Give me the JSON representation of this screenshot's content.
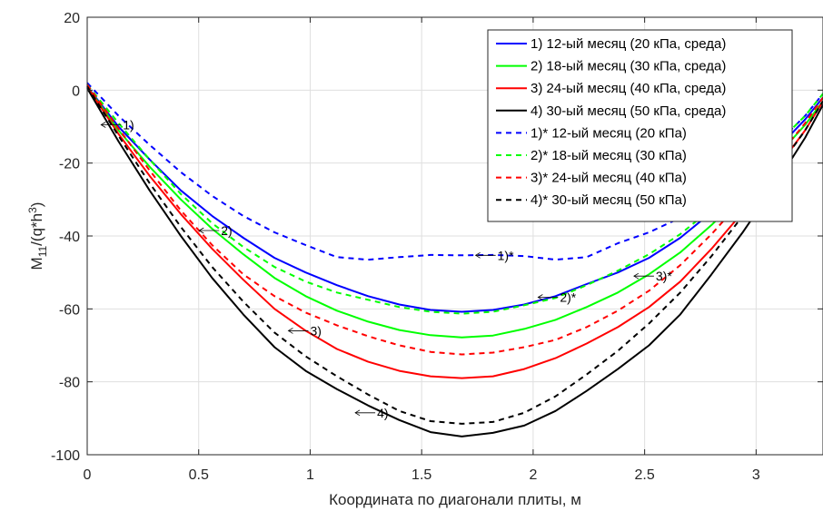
{
  "chart_data": {
    "type": "line",
    "xlabel": "Координата по диагонали плиты, м",
    "ylabel_main": "M",
    "ylabel_sub": "11",
    "ylabel_rest": "/(q*h",
    "ylabel_sup": "3",
    "ylabel_close": ")",
    "xlim": [
      0,
      3.3
    ],
    "ylim": [
      -100,
      20
    ],
    "xticks": [
      0,
      0.5,
      1,
      1.5,
      2,
      2.5,
      3
    ],
    "xtick_labels": [
      "0",
      "0.5",
      "1",
      "1.5",
      "2",
      "2.5",
      "3"
    ],
    "yticks": [
      20,
      0,
      -20,
      -40,
      -60,
      -80,
      -100
    ],
    "ytick_labels": [
      "20",
      "0",
      "-20",
      "-40",
      "-60",
      "-80",
      "-100"
    ],
    "grid": true,
    "legend_position": "top-right",
    "series": [
      {
        "name": "1) 12-ый месяц (20 кПа, среда)",
        "color": "#0000ff",
        "dash": "solid",
        "x": [
          0,
          0.14,
          0.28,
          0.42,
          0.56,
          0.7,
          0.84,
          0.98,
          1.12,
          1.26,
          1.4,
          1.54,
          1.68,
          1.82,
          1.96,
          2.1,
          2.24,
          2.38,
          2.52,
          2.66,
          2.8,
          2.94,
          3.08,
          3.22,
          3.3
        ],
        "y": [
          1,
          -10,
          -19,
          -27.5,
          -34.5,
          -40.5,
          -46,
          -50,
          -53.5,
          -56.5,
          -58.8,
          -60.3,
          -60.8,
          -60.3,
          -58.8,
          -56.5,
          -53.2,
          -50,
          -46,
          -40.5,
          -33.5,
          -25.5,
          -17,
          -8,
          -2
        ]
      },
      {
        "name": "2) 18-ый месяц (30 кПа, среда)",
        "color": "#00ff00",
        "dash": "solid",
        "x": [
          0,
          0.14,
          0.28,
          0.42,
          0.56,
          0.7,
          0.84,
          0.98,
          1.12,
          1.26,
          1.4,
          1.54,
          1.68,
          1.82,
          1.96,
          2.1,
          2.24,
          2.38,
          2.52,
          2.66,
          2.8,
          2.94,
          3.08,
          3.22,
          3.3
        ],
        "y": [
          1,
          -11,
          -21,
          -30,
          -38,
          -45,
          -51.5,
          -56.5,
          -60.5,
          -63.5,
          -65.8,
          -67.2,
          -67.8,
          -67.3,
          -65.5,
          -63,
          -59.5,
          -55.5,
          -50.5,
          -44.5,
          -37,
          -28.5,
          -19,
          -9.5,
          -3
        ]
      },
      {
        "name": "3) 24-ый месяц (40 кПа, среда)",
        "color": "#ff0000",
        "dash": "solid",
        "x": [
          0,
          0.14,
          0.28,
          0.42,
          0.56,
          0.7,
          0.84,
          0.98,
          1.12,
          1.26,
          1.4,
          1.54,
          1.68,
          1.82,
          1.96,
          2.1,
          2.24,
          2.38,
          2.52,
          2.66,
          2.8,
          2.94,
          3.08,
          3.22,
          3.3
        ],
        "y": [
          1,
          -12,
          -23.5,
          -34,
          -43.5,
          -52,
          -60,
          -66,
          -71,
          -74.5,
          -77,
          -78.5,
          -79,
          -78.5,
          -76.5,
          -73.5,
          -69.5,
          -65,
          -59.5,
          -52.5,
          -43.5,
          -33.5,
          -22.5,
          -11,
          -3
        ]
      },
      {
        "name": "4) 30-ый месяц (50 кПа, среда)",
        "color": "#000000",
        "dash": "solid",
        "x": [
          0,
          0.14,
          0.28,
          0.42,
          0.56,
          0.7,
          0.84,
          0.98,
          1.12,
          1.26,
          1.4,
          1.54,
          1.68,
          1.82,
          1.96,
          2.1,
          2.24,
          2.38,
          2.52,
          2.66,
          2.8,
          2.94,
          3.08,
          3.22,
          3.3
        ],
        "y": [
          0.5,
          -14,
          -27.5,
          -40,
          -51.5,
          -61.5,
          -70.5,
          -77,
          -82,
          -86.5,
          -90.5,
          -93.8,
          -95,
          -94,
          -92,
          -88,
          -82.5,
          -76.5,
          -70,
          -61.5,
          -50.5,
          -39,
          -26.5,
          -13,
          -4
        ]
      },
      {
        "name": "1)* 12-ый месяц (20 кПа)",
        "color": "#0000ff",
        "dash": "dashed",
        "x": [
          0,
          0.14,
          0.28,
          0.42,
          0.56,
          0.7,
          0.84,
          0.98,
          1.12,
          1.26,
          1.4,
          1.54,
          1.68,
          1.82,
          1.96,
          2.1,
          2.24,
          2.38,
          2.52,
          2.66,
          2.8,
          2.94,
          3.08,
          3.22,
          3.3
        ],
        "y": [
          2,
          -7,
          -15,
          -22.5,
          -29,
          -34.5,
          -39,
          -42.5,
          -45.8,
          -46.5,
          -45.8,
          -45.2,
          -45.3,
          -45.2,
          -45.5,
          -46.5,
          -45.8,
          -42,
          -39,
          -35,
          -30,
          -23,
          -15.5,
          -7,
          -1
        ]
      },
      {
        "name": "2)* 18-ый месяц (30 кПа)",
        "color": "#00ff00",
        "dash": "dashed",
        "x": [
          0,
          0.14,
          0.28,
          0.42,
          0.56,
          0.7,
          0.84,
          0.98,
          1.12,
          1.26,
          1.4,
          1.54,
          1.68,
          1.82,
          1.96,
          2.1,
          2.24,
          2.38,
          2.52,
          2.66,
          2.8,
          2.94,
          3.08,
          3.22,
          3.3
        ],
        "y": [
          1.5,
          -9,
          -19,
          -28.5,
          -36.5,
          -43,
          -48.5,
          -52.5,
          -55.5,
          -57.5,
          -59.5,
          -60.8,
          -61.3,
          -60.8,
          -59,
          -57,
          -53.5,
          -49.5,
          -45,
          -39.5,
          -32.5,
          -24.5,
          -15.5,
          -7,
          -1
        ]
      },
      {
        "name": "3)* 24-ый месяц (40 кПа)",
        "color": "#ff0000",
        "dash": "dashed",
        "x": [
          0,
          0.14,
          0.28,
          0.42,
          0.56,
          0.7,
          0.84,
          0.98,
          1.12,
          1.26,
          1.4,
          1.54,
          1.68,
          1.82,
          1.96,
          2.1,
          2.24,
          2.38,
          2.52,
          2.66,
          2.8,
          2.94,
          3.08,
          3.22,
          3.3
        ],
        "y": [
          1.5,
          -10.5,
          -22,
          -33,
          -42.5,
          -50.5,
          -56.5,
          -61,
          -64.5,
          -67.5,
          -70,
          -71.8,
          -72.5,
          -72,
          -70.5,
          -68.5,
          -65,
          -60.5,
          -55,
          -48,
          -39.5,
          -30,
          -19.5,
          -9,
          -2
        ]
      },
      {
        "name": "4)* 30-ый месяц (50 кПа)",
        "color": "#000000",
        "dash": "dashed",
        "x": [
          0,
          0.14,
          0.28,
          0.42,
          0.56,
          0.7,
          0.84,
          0.98,
          1.12,
          1.26,
          1.4,
          1.54,
          1.68,
          1.82,
          1.96,
          2.1,
          2.24,
          2.38,
          2.52,
          2.66,
          2.8,
          2.94,
          3.08,
          3.22,
          3.3
        ],
        "y": [
          1,
          -12.5,
          -25.5,
          -37.5,
          -48.5,
          -58,
          -66.5,
          -73,
          -78.5,
          -83.5,
          -88,
          -90.8,
          -91.5,
          -91,
          -88.5,
          -84,
          -78,
          -71.5,
          -64,
          -55.5,
          -45.5,
          -34.5,
          -23,
          -11,
          -3
        ]
      }
    ],
    "annotations": [
      {
        "text": "1)",
        "x": 0.16,
        "y": -9.5
      },
      {
        "text": "2)",
        "x": 0.6,
        "y": -38.5
      },
      {
        "text": "3)",
        "x": 1.0,
        "y": -66
      },
      {
        "text": "4)",
        "x": 1.3,
        "y": -88.5
      },
      {
        "text": "1)*",
        "x": 1.84,
        "y": -45.3
      },
      {
        "text": "2)*",
        "x": 2.12,
        "y": -56.8
      },
      {
        "text": "3)*",
        "x": 2.55,
        "y": -51
      }
    ]
  }
}
